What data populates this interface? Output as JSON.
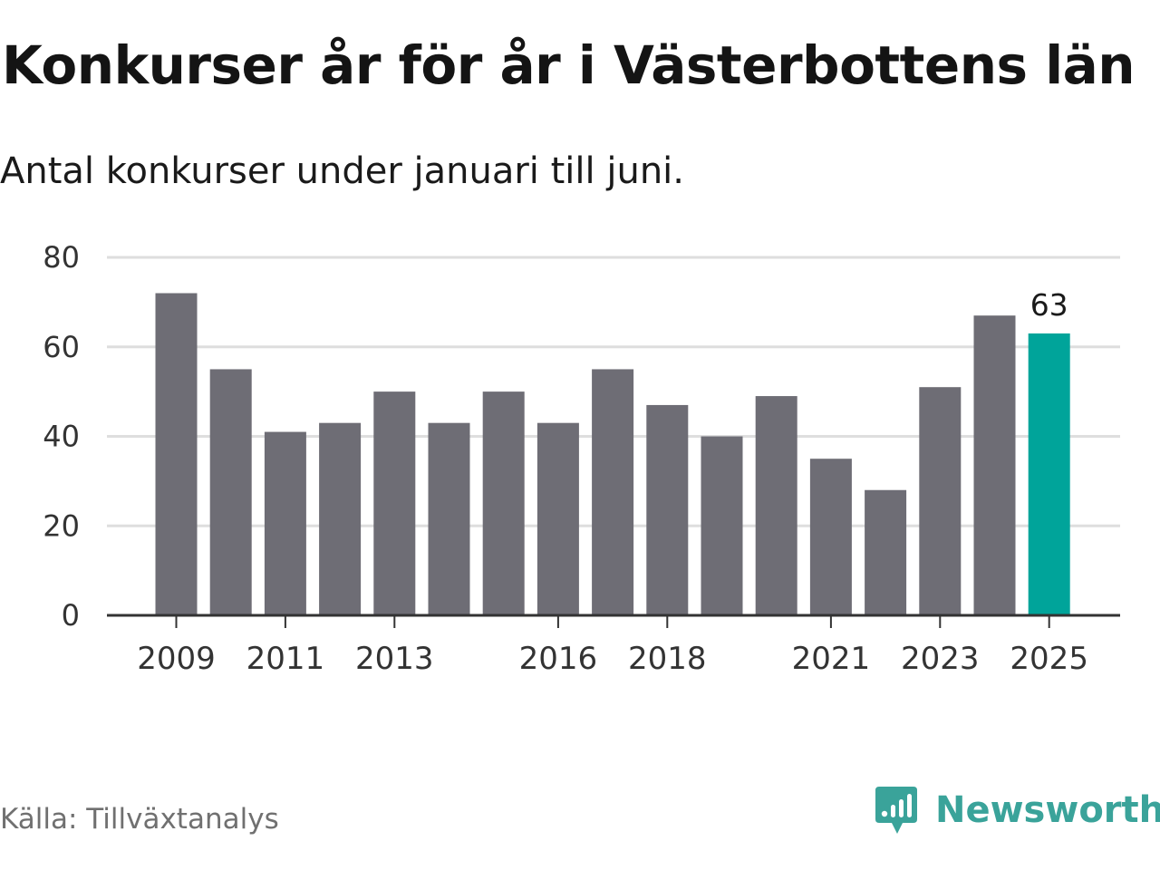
{
  "header": {
    "title": "Konkurser år för år i Västerbottens län",
    "subtitle": "Antal konkurser under januari till juni."
  },
  "footer": {
    "source": "Källa: Tillväxtanalys",
    "brand": "Newsworthy",
    "brand_icon": "newsworthy-logo-icon"
  },
  "colors": {
    "bar": "#6e6d75",
    "highlight": "#00a49a",
    "grid": "#dedede",
    "axis": "#333333",
    "brand": "#3aa39a"
  },
  "chart_data": {
    "type": "bar",
    "title": "Konkurser år för år i Västerbottens län",
    "subtitle": "Antal konkurser under januari till juni.",
    "categories": [
      "2009",
      "2010",
      "2011",
      "2012",
      "2013",
      "2014",
      "2015",
      "2016",
      "2017",
      "2018",
      "2019",
      "2020",
      "2021",
      "2022",
      "2023",
      "2024",
      "2025"
    ],
    "values": [
      72,
      55,
      41,
      43,
      50,
      43,
      50,
      43,
      55,
      47,
      40,
      49,
      35,
      28,
      51,
      67,
      63
    ],
    "x_tick_labels": [
      "2009",
      "2011",
      "2013",
      "2016",
      "2018",
      "2021",
      "2023",
      "2025"
    ],
    "y_ticks": [
      0,
      20,
      40,
      60,
      80
    ],
    "ylim": [
      0,
      80
    ],
    "grid": true,
    "highlight_category": "2025",
    "data_labels": [
      {
        "category": "2025",
        "text": "63"
      }
    ],
    "xlabel": "",
    "ylabel": ""
  }
}
